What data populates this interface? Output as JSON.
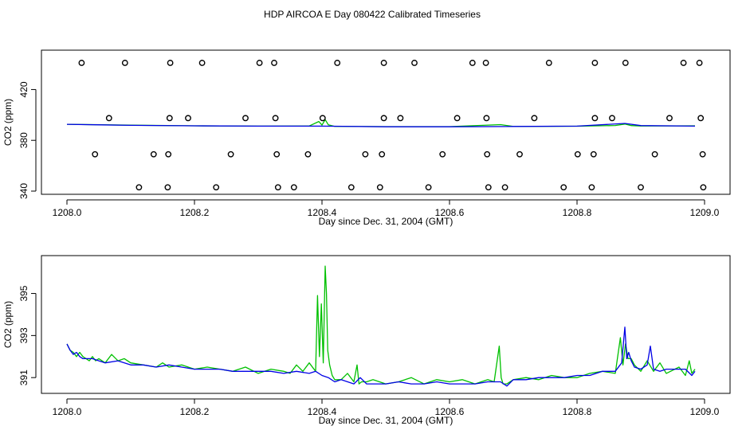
{
  "title": "HDP AIRCOA E  Day 080422  Calibrated Timeseries",
  "colors": {
    "green": "#00c000",
    "blue": "#0000e6",
    "axis": "#000000"
  },
  "chart_data": [
    {
      "type": "line",
      "name": "top-panel",
      "xlabel": "Day since Dec. 31, 2004 (GMT)",
      "ylabel": "CO2 (ppm)",
      "xlim": [
        1207.96,
        1209.04
      ],
      "ylim": [
        337.5,
        451
      ],
      "xticks": [
        "1208.0",
        "1208.2",
        "1208.4",
        "1208.6",
        "1208.8",
        "1209.0"
      ],
      "yticks": [
        "340",
        "380",
        "420"
      ],
      "grid": false,
      "series": [
        {
          "color": "green",
          "style": "line",
          "x": [
            1208.0,
            1208.1,
            1208.2,
            1208.3,
            1208.38,
            1208.395,
            1208.4,
            1208.405,
            1208.41,
            1208.42,
            1208.5,
            1208.6,
            1208.68,
            1208.7,
            1208.8,
            1208.86,
            1208.875,
            1208.885,
            1208.9,
            1208.985
          ],
          "y": [
            392.6,
            391.9,
            391.4,
            391.2,
            391.3,
            394.8,
            392.0,
            396.3,
            392.2,
            391.0,
            390.8,
            390.8,
            392.4,
            390.9,
            391.1,
            391.7,
            392.8,
            391.6,
            391.3,
            391.4
          ]
        },
        {
          "color": "blue",
          "style": "line",
          "x": [
            1208.0,
            1208.1,
            1208.2,
            1208.3,
            1208.4,
            1208.5,
            1208.6,
            1208.7,
            1208.8,
            1208.875,
            1208.9,
            1208.985
          ],
          "y": [
            392.6,
            391.8,
            391.4,
            391.2,
            391.2,
            390.7,
            390.7,
            390.9,
            391.2,
            393.3,
            391.6,
            391.2
          ]
        },
        {
          "color": "black",
          "style": "points",
          "x": [
            1208.023,
            1208.091,
            1208.162,
            1208.212,
            1208.302,
            1208.325,
            1208.424,
            1208.497,
            1208.545,
            1208.636,
            1208.657,
            1208.756,
            1208.828,
            1208.876,
            1208.967,
            1208.992,
            1208.066,
            1208.161,
            1208.19,
            1208.28,
            1208.327,
            1208.401,
            1208.497,
            1208.523,
            1208.612,
            1208.658,
            1208.733,
            1208.828,
            1208.855,
            1208.945,
            1208.994,
            1208.044,
            1208.136,
            1208.159,
            1208.257,
            1208.329,
            1208.378,
            1208.468,
            1208.494,
            1208.589,
            1208.659,
            1208.71,
            1208.801,
            1208.826,
            1208.922,
            1208.997,
            1208.113,
            1208.158,
            1208.234,
            1208.331,
            1208.356,
            1208.446,
            1208.491,
            1208.567,
            1208.661,
            1208.687,
            1208.779,
            1208.823,
            1208.9,
            1208.998
          ],
          "y": [
            441,
            441,
            441,
            441,
            441,
            441,
            441,
            441,
            441,
            441,
            441,
            441,
            441,
            441,
            441,
            441,
            397.5,
            397.5,
            397.5,
            397.5,
            397.5,
            397.5,
            397.5,
            397.5,
            397.5,
            397.5,
            397.5,
            397.5,
            397.5,
            397.5,
            397.5,
            369,
            369,
            369,
            369,
            369,
            369,
            369,
            369,
            369,
            369,
            369,
            369,
            369,
            369,
            369,
            343,
            343,
            343,
            343,
            343,
            343,
            343,
            343,
            343,
            343,
            343,
            343,
            343,
            343
          ]
        }
      ]
    },
    {
      "type": "line",
      "name": "bottom-panel",
      "xlabel": "Day since Dec. 31, 2004 (GMT)",
      "ylabel": "CO2 (ppm)",
      "xlim": [
        1207.96,
        1209.04
      ],
      "ylim": [
        390.25,
        396.8
      ],
      "xticks": [
        "1208.0",
        "1208.2",
        "1208.4",
        "1208.6",
        "1208.8",
        "1209.0"
      ],
      "yticks": [
        "391",
        "393",
        "395"
      ],
      "grid": false,
      "series": [
        {
          "color": "green",
          "style": "line",
          "x": [
            1208.0,
            1208.005,
            1208.01,
            1208.015,
            1208.02,
            1208.025,
            1208.03,
            1208.035,
            1208.04,
            1208.045,
            1208.05,
            1208.06,
            1208.07,
            1208.08,
            1208.09,
            1208.1,
            1208.12,
            1208.14,
            1208.15,
            1208.16,
            1208.18,
            1208.2,
            1208.22,
            1208.24,
            1208.26,
            1208.28,
            1208.3,
            1208.32,
            1208.34,
            1208.35,
            1208.36,
            1208.37,
            1208.38,
            1208.39,
            1208.393,
            1208.396,
            1208.399,
            1208.402,
            1208.405,
            1208.407,
            1208.409,
            1208.412,
            1208.416,
            1208.42,
            1208.43,
            1208.44,
            1208.45,
            1208.455,
            1208.458,
            1208.462,
            1208.47,
            1208.48,
            1208.5,
            1208.52,
            1208.54,
            1208.56,
            1208.58,
            1208.6,
            1208.62,
            1208.64,
            1208.66,
            1208.67,
            1208.678,
            1208.681,
            1208.684,
            1208.69,
            1208.7,
            1208.72,
            1208.74,
            1208.76,
            1208.78,
            1208.8,
            1208.82,
            1208.84,
            1208.86,
            1208.868,
            1208.872,
            1208.876,
            1208.88,
            1208.885,
            1208.89,
            1208.9,
            1208.91,
            1208.92,
            1208.93,
            1208.94,
            1208.96,
            1208.97,
            1208.976,
            1208.98,
            1208.985
          ],
          "y": [
            392.6,
            392.3,
            392.2,
            392.0,
            392.2,
            392.0,
            391.9,
            391.8,
            392.0,
            391.8,
            391.9,
            391.7,
            392.1,
            391.8,
            391.9,
            391.7,
            391.6,
            391.5,
            391.7,
            391.5,
            391.6,
            391.4,
            391.5,
            391.4,
            391.3,
            391.5,
            391.2,
            391.4,
            391.3,
            391.2,
            391.6,
            391.3,
            391.7,
            391.3,
            394.9,
            392.0,
            394.5,
            391.7,
            396.3,
            395.0,
            392.3,
            391.6,
            391.1,
            390.9,
            390.9,
            391.2,
            390.8,
            391.6,
            390.7,
            390.8,
            390.8,
            390.9,
            390.7,
            390.8,
            391.0,
            390.7,
            390.9,
            390.8,
            390.9,
            390.7,
            390.9,
            390.8,
            392.5,
            391.0,
            390.7,
            390.7,
            390.9,
            391.0,
            390.9,
            391.1,
            391.0,
            391.0,
            391.2,
            391.3,
            391.2,
            392.9,
            391.6,
            392.6,
            391.9,
            391.9,
            391.6,
            391.3,
            391.8,
            391.3,
            391.7,
            391.2,
            391.5,
            391.1,
            391.8,
            391.2,
            391.4
          ]
        },
        {
          "color": "blue",
          "style": "line",
          "x": [
            1208.0,
            1208.005,
            1208.01,
            1208.015,
            1208.02,
            1208.025,
            1208.03,
            1208.04,
            1208.05,
            1208.06,
            1208.08,
            1208.1,
            1208.12,
            1208.14,
            1208.16,
            1208.18,
            1208.2,
            1208.22,
            1208.24,
            1208.26,
            1208.28,
            1208.3,
            1208.32,
            1208.34,
            1208.36,
            1208.38,
            1208.39,
            1208.4,
            1208.41,
            1208.42,
            1208.43,
            1208.45,
            1208.46,
            1208.47,
            1208.5,
            1208.52,
            1208.54,
            1208.56,
            1208.58,
            1208.6,
            1208.62,
            1208.64,
            1208.66,
            1208.68,
            1208.69,
            1208.7,
            1208.72,
            1208.74,
            1208.76,
            1208.78,
            1208.8,
            1208.82,
            1208.84,
            1208.86,
            1208.87,
            1208.875,
            1208.878,
            1208.881,
            1208.885,
            1208.89,
            1208.9,
            1208.91,
            1208.915,
            1208.92,
            1208.93,
            1208.94,
            1208.96,
            1208.97,
            1208.98,
            1208.985
          ],
          "y": [
            392.6,
            392.3,
            392.1,
            392.2,
            392.0,
            391.9,
            391.9,
            391.9,
            391.8,
            391.7,
            391.8,
            391.6,
            391.6,
            391.5,
            391.6,
            391.5,
            391.4,
            391.4,
            391.4,
            391.3,
            391.3,
            391.3,
            391.3,
            391.2,
            391.3,
            391.2,
            391.3,
            391.1,
            391.0,
            390.8,
            390.9,
            390.7,
            391.0,
            390.7,
            390.7,
            390.8,
            390.7,
            390.7,
            390.8,
            390.7,
            390.7,
            390.7,
            390.8,
            390.8,
            390.6,
            390.9,
            390.9,
            391.0,
            391.0,
            391.0,
            391.1,
            391.1,
            391.3,
            391.3,
            391.7,
            393.4,
            391.9,
            392.2,
            391.8,
            391.5,
            391.4,
            391.6,
            392.5,
            391.4,
            391.3,
            391.4,
            391.4,
            391.4,
            391.1,
            391.3
          ]
        }
      ]
    }
  ]
}
